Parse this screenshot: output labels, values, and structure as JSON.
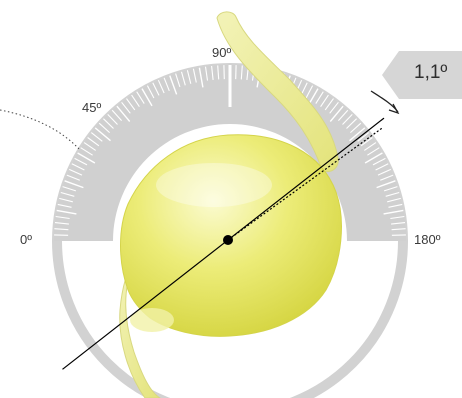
{
  "dial": {
    "labels": {
      "deg_0": "0º",
      "deg_45": "45º",
      "deg_90": "90º",
      "deg_180": "180º"
    },
    "axis_angle_degrees": 38,
    "indicator": {
      "value_label": "1,1º"
    }
  },
  "colors": {
    "dial_gray": "#d0d0d0",
    "tick_white": "#ffffff",
    "lens_yellow": "#e2e24a",
    "haptic_yellow": "#eded9a",
    "axis_line": "#000000"
  }
}
